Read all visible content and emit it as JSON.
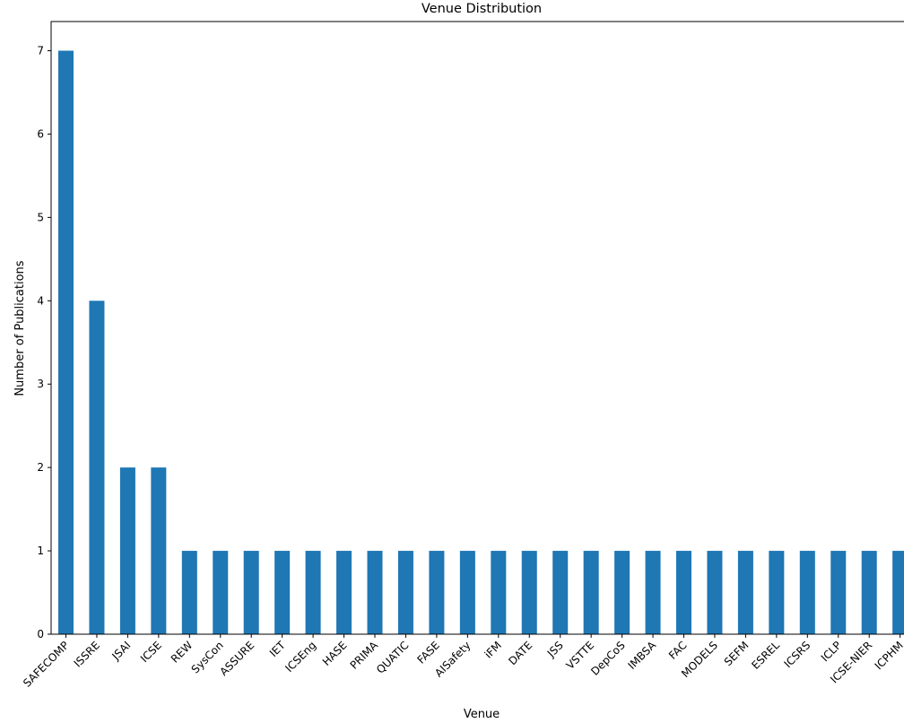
{
  "chart_data": {
    "type": "bar",
    "title": "Venue Distribution",
    "xlabel": "Venue",
    "ylabel": "Number of Publications",
    "categories": [
      "SAFECOMP",
      "ISSRE",
      "JSAI",
      "ICSE",
      "REW",
      "SysCon",
      "ASSURE",
      "IET",
      "ICSEng",
      "HASE",
      "PRIMA",
      "QUATIC",
      "FASE",
      "AISafety",
      "iFM",
      "DATE",
      "JSS",
      "VSTTE",
      "DepCoS",
      "IMBSA",
      "FAC",
      "MODELS",
      "SEFM",
      "ESREL",
      "ICSRS",
      "ICLP",
      "ICSE-NIER",
      "ICPHM"
    ],
    "values": [
      7,
      4,
      2,
      2,
      1,
      1,
      1,
      1,
      1,
      1,
      1,
      1,
      1,
      1,
      1,
      1,
      1,
      1,
      1,
      1,
      1,
      1,
      1,
      1,
      1,
      1,
      1,
      1
    ],
    "yticks": [
      0,
      1,
      2,
      3,
      4,
      5,
      6,
      7
    ],
    "ylim": [
      0,
      7.35
    ],
    "grid": false,
    "colors": {
      "bar": "#1f77b4"
    }
  }
}
